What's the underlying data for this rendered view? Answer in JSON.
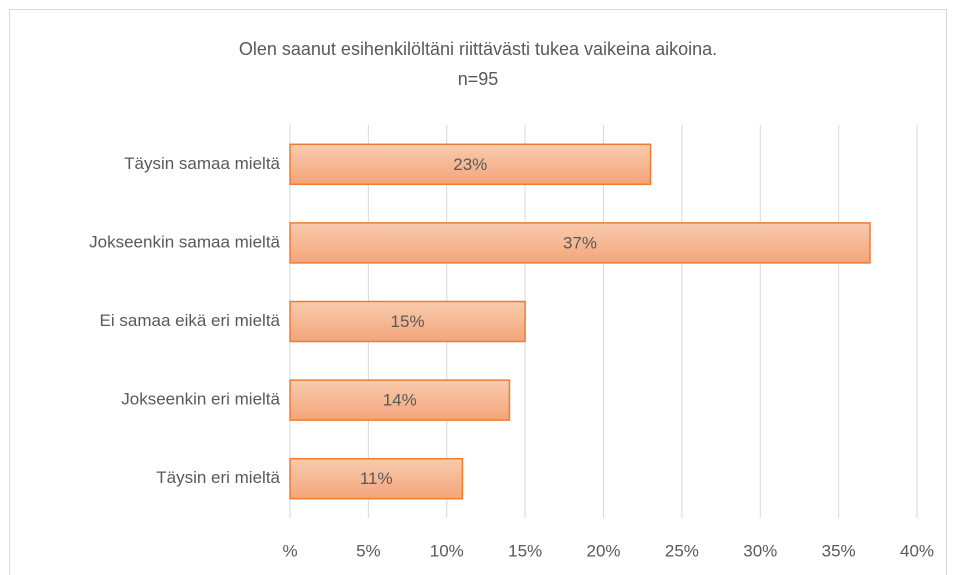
{
  "chart_data": {
    "type": "bar",
    "orientation": "horizontal",
    "title": "Olen saanut esihenkilöltäni riittävästi tukea vaikeina aikoina.",
    "subtitle": "n=95",
    "categories": [
      "Täysin samaa mieltä",
      "Jokseenkin samaa mieltä",
      "Ei samaa eikä eri mieltä",
      "Jokseenkin eri mieltä",
      "Täysin eri mieltä"
    ],
    "values": [
      23,
      37,
      15,
      14,
      11
    ],
    "value_labels": [
      "23%",
      "37%",
      "15%",
      "14%",
      "11%"
    ],
    "color": "#ed7d31",
    "xlim": [
      0,
      40
    ],
    "xticks": [
      {
        "value": 0,
        "label": "%"
      },
      {
        "value": 5,
        "label": "5%"
      },
      {
        "value": 10,
        "label": "10%"
      },
      {
        "value": 15,
        "label": "15%"
      },
      {
        "value": 20,
        "label": "20%"
      },
      {
        "value": 25,
        "label": "25%"
      },
      {
        "value": 30,
        "label": "30%"
      },
      {
        "value": 35,
        "label": "35%"
      },
      {
        "value": 40,
        "label": "40%"
      }
    ],
    "grid": true
  }
}
